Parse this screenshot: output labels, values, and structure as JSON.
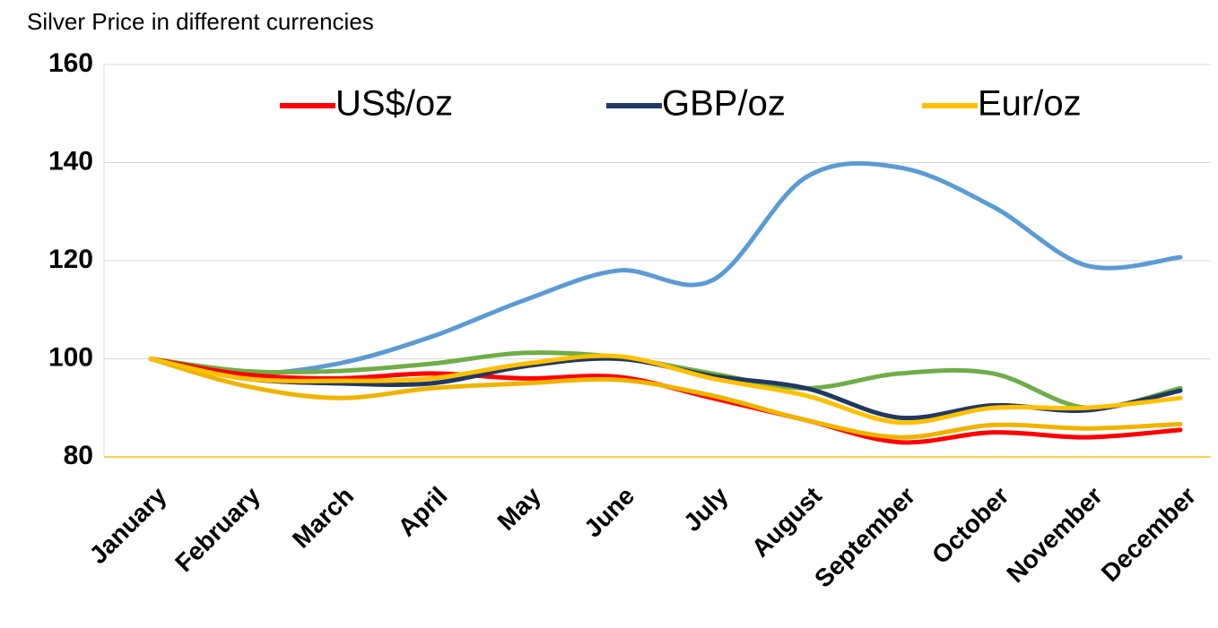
{
  "chart_data": {
    "type": "line",
    "title": "Silver Price in different currencies",
    "categories": [
      "January",
      "February",
      "March",
      "April",
      "May",
      "June",
      "July",
      "August",
      "September",
      "October",
      "November",
      "December"
    ],
    "series": [
      {
        "color": "#5b9bd5",
        "values": [
          100,
          97,
          99,
          104.5,
          112,
          118,
          116,
          137,
          139,
          131,
          119,
          120.7
        ]
      },
      {
        "color": "#70ad47",
        "values": [
          100,
          97.5,
          97.5,
          99,
          101.2,
          100.3,
          97,
          94,
          97,
          97,
          90,
          94
        ]
      },
      {
        "name": "US$/oz",
        "color": "#ff0000",
        "values": [
          100,
          96.8,
          96,
          97,
          96,
          96.3,
          92,
          87.5,
          83,
          85,
          84,
          85.5
        ]
      },
      {
        "color": "#f0b400",
        "values": [
          100,
          94.5,
          92,
          94,
          95,
          95.7,
          92.5,
          87.5,
          84,
          86.5,
          85.8,
          86.7
        ]
      },
      {
        "name": "GBP/oz",
        "color": "#203864",
        "values": [
          100,
          96,
          95,
          95,
          98.5,
          100,
          96.5,
          94,
          88,
          90.5,
          89.5,
          93.5
        ]
      },
      {
        "name": "Eur/oz",
        "color": "#ffc000",
        "values": [
          100,
          96,
          95.5,
          96,
          99,
          100.5,
          96,
          92.5,
          87,
          90,
          90,
          92
        ]
      }
    ],
    "ylim": [
      80,
      160
    ],
    "yticks": [
      80,
      100,
      120,
      140,
      160
    ],
    "grid": true
  }
}
